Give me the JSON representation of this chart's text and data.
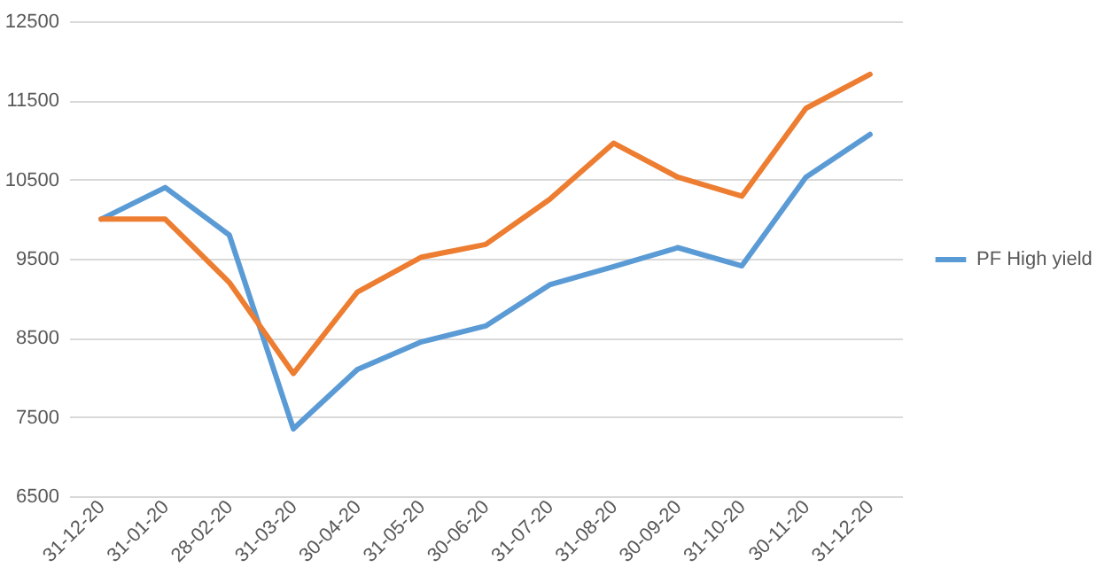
{
  "chart_data": {
    "type": "line",
    "categories": [
      "31-12-20",
      "31-01-20",
      "28-02-20",
      "31-03-20",
      "30-04-20",
      "31-05-20",
      "30-06-20",
      "31-07-20",
      "31-08-20",
      "30-09-20",
      "31-10-20",
      "30-11-20",
      "31-12-20"
    ],
    "series": [
      {
        "name": "PF High yield",
        "color": "#5b9bd5",
        "values": [
          10000,
          10400,
          9800,
          7350,
          8100,
          8450,
          8650,
          9170,
          9400,
          9640,
          9410,
          10530,
          11070
        ]
      },
      {
        "color": "#ed7d31",
        "values": [
          10000,
          10000,
          9200,
          8050,
          9080,
          9520,
          9680,
          10250,
          10960,
          10530,
          10290,
          11400,
          11830
        ]
      }
    ],
    "ylim": [
      6500,
      12500
    ],
    "yticks": [
      6500,
      7500,
      8500,
      9500,
      10500,
      11500,
      12500
    ],
    "grid": "y",
    "legend": "right"
  }
}
